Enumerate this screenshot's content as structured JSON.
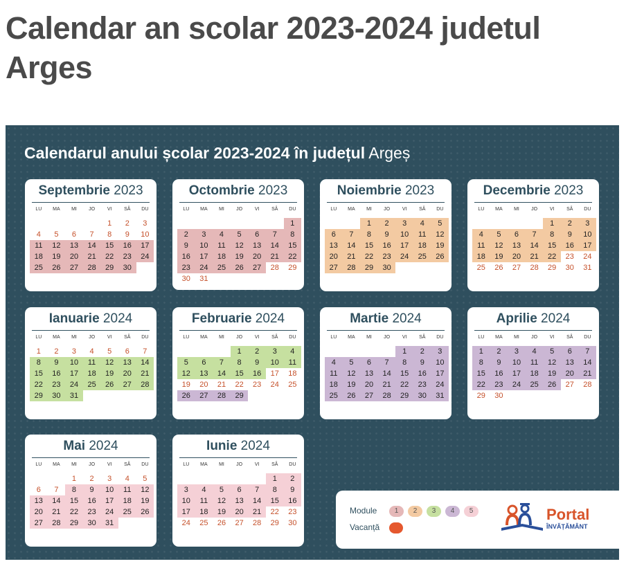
{
  "page": {
    "title": "Calendar an scolar 2023-2024 judetul Arges"
  },
  "poster": {
    "title_bold": "Calendarul anului școlar 2023-2024 în județul",
    "title_light": "Argeș"
  },
  "weekdays": [
    "LU",
    "MA",
    "MI",
    "JO",
    "VI",
    "SÂ",
    "DU"
  ],
  "months": [
    {
      "name": "Septembrie",
      "year": "2023",
      "start": 4,
      "days": 30,
      "col": 0,
      "row": 0,
      "modules": [
        [
          "m1",
          11,
          30
        ]
      ],
      "holidays": []
    },
    {
      "name": "Octombrie",
      "year": "2023",
      "start": 6,
      "days": 31,
      "col": 1,
      "row": 0,
      "modules": [
        [
          "m1",
          1,
          27
        ]
      ],
      "holidays": []
    },
    {
      "name": "Noiembrie",
      "year": "2023",
      "start": 2,
      "days": 30,
      "col": 2,
      "row": 0,
      "modules": [
        [
          "m2",
          1,
          30
        ]
      ],
      "holidays": []
    },
    {
      "name": "Decembrie",
      "year": "2023",
      "start": 4,
      "days": 31,
      "col": 3,
      "row": 0,
      "modules": [
        [
          "m2",
          1,
          22
        ]
      ],
      "holidays": []
    },
    {
      "name": "Ianuarie",
      "year": "2024",
      "start": 0,
      "days": 31,
      "col": 0,
      "row": 1,
      "modules": [
        [
          "m3",
          8,
          31
        ]
      ],
      "holidays": []
    },
    {
      "name": "Februarie",
      "year": "2024",
      "start": 3,
      "days": 29,
      "col": 1,
      "row": 1,
      "modules": [
        [
          "m3",
          1,
          16
        ],
        [
          "m4",
          26,
          29
        ]
      ],
      "holidays": []
    },
    {
      "name": "Martie",
      "year": "2024",
      "start": 4,
      "days": 31,
      "col": 2,
      "row": 1,
      "modules": [
        [
          "m4",
          1,
          31
        ]
      ],
      "holidays": []
    },
    {
      "name": "Aprilie",
      "year": "2024",
      "start": 0,
      "days": 30,
      "col": 3,
      "row": 1,
      "modules": [
        [
          "m4",
          1,
          26
        ]
      ],
      "holidays": []
    },
    {
      "name": "Mai",
      "year": "2024",
      "start": 2,
      "days": 31,
      "col": 0,
      "row": 2,
      "modules": [
        [
          "m5",
          8,
          31
        ]
      ],
      "holidays": []
    },
    {
      "name": "Iunie",
      "year": "2024",
      "start": 5,
      "days": 30,
      "col": 1,
      "row": 2,
      "modules": [
        [
          "m5",
          1,
          21
        ]
      ],
      "holidays": []
    }
  ],
  "legend": {
    "modules_label": "Module",
    "vacation_label": "Vacanță",
    "modules": [
      {
        "n": "1",
        "color": "#e5b8b8"
      },
      {
        "n": "2",
        "color": "#f3caa2"
      },
      {
        "n": "3",
        "color": "#c6e0a0"
      },
      {
        "n": "4",
        "color": "#cbb7d4"
      },
      {
        "n": "5",
        "color": "#f5d0d6"
      }
    ],
    "vacation_color": "#e5582e"
  },
  "logo": {
    "portal": "Portal",
    "sub": "ÎNVĂȚĂMÂNT"
  },
  "colors": {
    "poster_bg": "#2f4f5e",
    "weekend": "#c5502a"
  }
}
